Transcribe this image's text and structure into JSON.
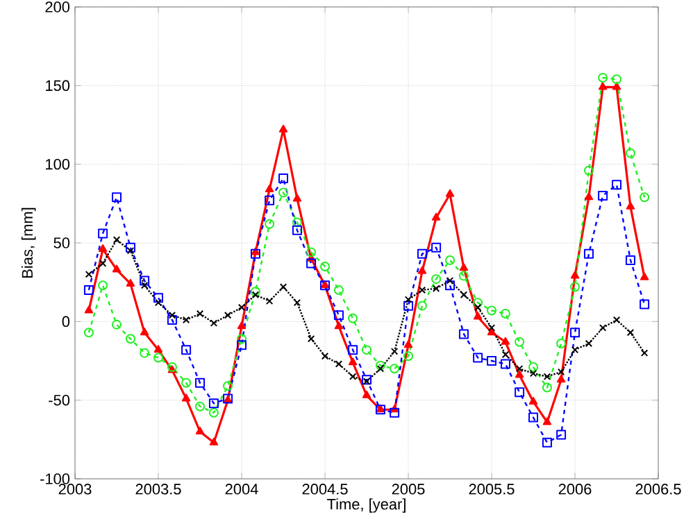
{
  "chart_data": {
    "type": "line",
    "xlabel": "Time, [year]",
    "ylabel": "Bias, [mm]",
    "xlim": [
      2003,
      2006.5
    ],
    "xticks": [
      2003,
      2003.5,
      2004,
      2004.5,
      2005,
      2005.5,
      2006,
      2006.5
    ],
    "ylim": [
      -100,
      200
    ],
    "yticks": [
      -100,
      -50,
      0,
      50,
      100,
      150,
      200
    ],
    "grid": true,
    "x": [
      2003.083,
      2003.167,
      2003.25,
      2003.333,
      2003.417,
      2003.5,
      2003.583,
      2003.667,
      2003.75,
      2003.833,
      2003.917,
      2004.0,
      2004.083,
      2004.167,
      2004.25,
      2004.333,
      2004.417,
      2004.5,
      2004.583,
      2004.667,
      2004.75,
      2004.833,
      2004.917,
      2005.0,
      2005.083,
      2005.167,
      2005.25,
      2005.333,
      2005.417,
      2005.5,
      2005.583,
      2005.667,
      2005.75,
      2005.833,
      2005.917,
      2006.0,
      2006.083,
      2006.167,
      2006.25,
      2006.333,
      2006.417
    ],
    "series": [
      {
        "color": "#ff0000",
        "marker": "triangle",
        "line_style": "solid",
        "values": [
          7,
          46,
          33,
          24,
          -7,
          -18,
          -31,
          -49,
          -70,
          -77,
          -50,
          -3,
          44,
          84,
          122,
          78,
          40,
          23,
          -3,
          -26,
          -47,
          -56,
          -56,
          -15,
          32,
          66,
          81,
          34,
          3,
          -7,
          -13,
          -34,
          -51,
          -64,
          -37,
          29,
          79,
          149,
          149,
          73,
          28
        ]
      },
      {
        "color": "#22ee22",
        "marker": "circle",
        "line_style": "dashed",
        "values": [
          -7,
          23,
          -2,
          -11,
          -20,
          -23,
          -29,
          -39,
          -54,
          -58,
          -41,
          -11,
          19,
          62,
          82,
          63,
          44,
          35,
          20,
          2,
          -18,
          -28,
          -30,
          -22,
          10,
          27,
          39,
          29,
          12,
          7,
          5,
          -13,
          -29,
          -42,
          -14,
          22,
          96,
          155,
          154,
          107,
          79
        ]
      },
      {
        "color": "#0000ff",
        "marker": "square",
        "line_style": "dashed",
        "values": [
          20,
          56,
          79,
          47,
          26,
          15,
          1,
          -18,
          -39,
          -52,
          -49,
          -15,
          43,
          77,
          91,
          58,
          37,
          23,
          4,
          -18,
          -37,
          -56,
          -58,
          10,
          43,
          47,
          23,
          -8,
          -23,
          -25,
          -27,
          -45,
          -61,
          -77,
          -72,
          -7,
          43,
          80,
          87,
          39,
          11
        ]
      },
      {
        "color": "#000000",
        "marker": "cross",
        "line_style": "dotted",
        "values": [
          30,
          37,
          52,
          45,
          23,
          12,
          4,
          1,
          5,
          -1,
          4,
          9,
          17,
          13,
          22,
          12,
          -11,
          -22,
          -27,
          -35,
          -38,
          -30,
          -19,
          14,
          20,
          21,
          26,
          17,
          9,
          -4,
          -21,
          -30,
          -33,
          -35,
          -32,
          -18,
          -14,
          -4,
          1,
          -7,
          -20
        ]
      }
    ]
  }
}
